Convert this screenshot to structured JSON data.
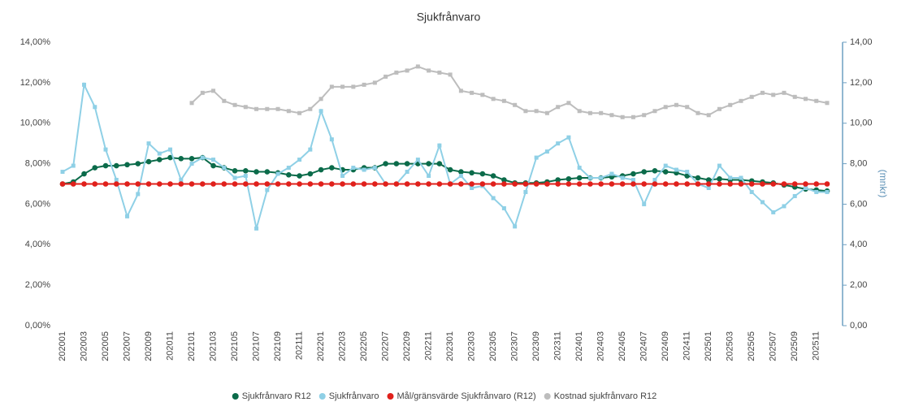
{
  "chart_data": {
    "type": "line",
    "title": "Sjukfrånvaro",
    "y2label": "(mnkr)",
    "legend": "bottom",
    "grid": false,
    "categories": [
      "202001",
      null,
      "202003",
      null,
      "202005",
      null,
      "202007",
      null,
      "202009",
      null,
      "202011",
      null,
      "202101",
      null,
      "202103",
      null,
      "202105",
      null,
      "202107",
      null,
      "202109",
      null,
      "202111",
      null,
      "202201",
      null,
      "202203",
      null,
      "202205",
      null,
      "202207",
      null,
      "202209",
      null,
      "202211",
      null,
      "202301",
      null,
      "202303",
      null,
      "202305",
      null,
      "202307",
      null,
      "202309",
      null,
      "202311",
      null,
      "202401",
      null,
      "202403",
      null,
      "202405",
      null,
      "202407",
      null,
      "202409",
      null,
      "202411",
      null,
      "202501",
      null,
      "202503",
      null,
      "202505",
      null,
      "202507",
      null,
      "202509",
      null,
      "202511",
      null
    ],
    "ylim": [
      0,
      14
    ],
    "yticks": [
      {
        "value": 0,
        "label": "0,00%"
      },
      {
        "value": 2,
        "label": "2,00%"
      },
      {
        "value": 4,
        "label": "4,00%"
      },
      {
        "value": 6,
        "label": "6,00%"
      },
      {
        "value": 8,
        "label": "8,00%"
      },
      {
        "value": 10,
        "label": "10,00%"
      },
      {
        "value": 12,
        "label": "12,00%"
      },
      {
        "value": 14,
        "label": "14,00%"
      }
    ],
    "y2lim": [
      0,
      14
    ],
    "y2ticks": [
      {
        "value": 0,
        "label": "0,00"
      },
      {
        "value": 2,
        "label": "2,00"
      },
      {
        "value": 4,
        "label": "4,00"
      },
      {
        "value": 6,
        "label": "6,00"
      },
      {
        "value": 8,
        "label": "8,00"
      },
      {
        "value": 10,
        "label": "10,00"
      },
      {
        "value": 12,
        "label": "12,00"
      },
      {
        "value": 14,
        "label": "14,00"
      }
    ],
    "series": [
      {
        "name": "Sjukfrånvaro R12",
        "color": "#0b6b4a",
        "marker": "circle",
        "values": [
          7.0,
          7.1,
          7.5,
          7.8,
          7.9,
          7.9,
          7.95,
          8.0,
          8.1,
          8.2,
          8.3,
          8.25,
          8.25,
          8.3,
          7.9,
          7.8,
          7.65,
          7.65,
          7.6,
          7.6,
          7.55,
          7.45,
          7.4,
          7.5,
          7.7,
          7.8,
          7.7,
          7.7,
          7.8,
          7.8,
          8.0,
          8.0,
          8.0,
          8.0,
          8.0,
          8.0,
          7.7,
          7.6,
          7.55,
          7.5,
          7.4,
          7.2,
          7.05,
          7.05,
          7.05,
          7.1,
          7.2,
          7.25,
          7.3,
          7.3,
          7.3,
          7.35,
          7.4,
          7.5,
          7.6,
          7.65,
          7.6,
          7.55,
          7.4,
          7.3,
          7.2,
          7.25,
          7.2,
          7.2,
          7.15,
          7.1,
          7.05,
          6.95,
          6.85,
          6.75,
          6.7,
          6.65
        ]
      },
      {
        "name": "Sjukfrånvaro",
        "color": "#8fd0e6",
        "marker": "square",
        "values": [
          7.6,
          7.9,
          11.9,
          10.8,
          8.7,
          7.2,
          5.4,
          6.5,
          9.0,
          8.5,
          8.7,
          7.2,
          8.0,
          8.3,
          8.2,
          7.8,
          7.3,
          7.4,
          4.8,
          6.7,
          7.5,
          7.8,
          8.2,
          8.7,
          10.6,
          9.2,
          7.4,
          7.8,
          7.7,
          7.8,
          7.0,
          7.0,
          7.6,
          8.2,
          7.4,
          8.9,
          7.0,
          7.4,
          6.8,
          6.9,
          6.3,
          5.8,
          4.9,
          6.6,
          8.3,
          8.6,
          9.0,
          9.3,
          7.8,
          7.3,
          7.3,
          7.5,
          7.3,
          7.2,
          6.0,
          7.2,
          7.9,
          7.7,
          7.6,
          7.0,
          6.8,
          7.9,
          7.3,
          7.3,
          6.6,
          6.1,
          5.6,
          5.9,
          6.4,
          6.8,
          6.6,
          6.6
        ]
      },
      {
        "name": "Mål/gränsvärde Sjukfrånvaro (R12)",
        "color": "#e0201b",
        "marker": "circle",
        "values": [
          7,
          7,
          7,
          7,
          7,
          7,
          7,
          7,
          7,
          7,
          7,
          7,
          7,
          7,
          7,
          7,
          7,
          7,
          7,
          7,
          7,
          7,
          7,
          7,
          7,
          7,
          7,
          7,
          7,
          7,
          7,
          7,
          7,
          7,
          7,
          7,
          7,
          7,
          7,
          7,
          7,
          7,
          7,
          7,
          7,
          7,
          7,
          7,
          7,
          7,
          7,
          7,
          7,
          7,
          7,
          7,
          7,
          7,
          7,
          7,
          7,
          7,
          7,
          7,
          7,
          7,
          7,
          7,
          7,
          7,
          7,
          7
        ]
      },
      {
        "name": "Kostnad sjukfrånvaro R12",
        "color": "#bdbdbd",
        "marker": "square",
        "axis": "y2",
        "values": [
          null,
          null,
          null,
          null,
          null,
          null,
          null,
          null,
          null,
          null,
          null,
          null,
          11.0,
          11.5,
          11.6,
          11.1,
          10.9,
          10.8,
          10.7,
          10.7,
          10.7,
          10.6,
          10.5,
          10.7,
          11.2,
          11.8,
          11.8,
          11.8,
          11.9,
          12.0,
          12.3,
          12.5,
          12.6,
          12.8,
          12.6,
          12.5,
          12.4,
          11.6,
          11.5,
          11.4,
          11.2,
          11.1,
          10.9,
          10.6,
          10.6,
          10.5,
          10.8,
          11.0,
          10.6,
          10.5,
          10.5,
          10.4,
          10.3,
          10.3,
          10.4,
          10.6,
          10.8,
          10.9,
          10.8,
          10.5,
          10.4,
          10.7,
          10.9,
          11.1,
          11.3,
          11.5,
          11.4,
          11.5,
          11.3,
          11.2,
          11.1,
          11.0
        ]
      }
    ]
  }
}
